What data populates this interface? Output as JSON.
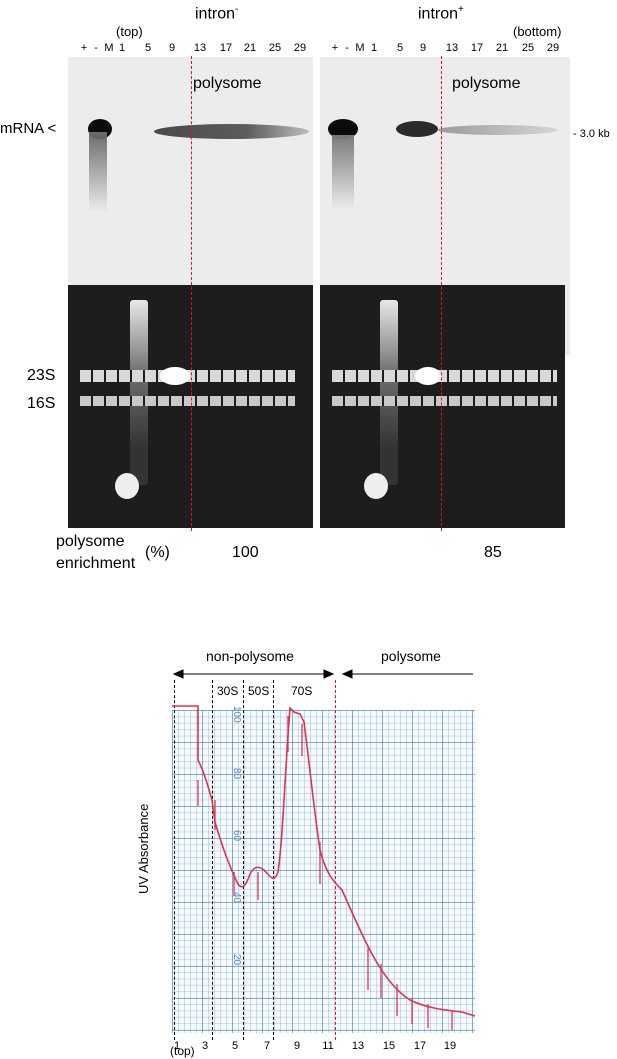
{
  "gel_figure": {
    "left_header": {
      "top_label": "(top)",
      "title": "intron",
      "superscript": "-"
    },
    "right_header": {
      "title": "intron",
      "superscript": "+",
      "bottom_label": "(bottom)"
    },
    "lanes": [
      "+",
      "-",
      "M",
      "1",
      "5",
      "9",
      "13",
      "17",
      "21",
      "25",
      "29"
    ],
    "polysome_label": "polysome",
    "mrna_label": "mRNA",
    "size_marker": "3.0 kb",
    "rrna_labels": [
      "23S",
      "16S"
    ],
    "enrichment_label_line1": "polysome",
    "enrichment_label_line2": "enrichment",
    "enrichment_unit": "(%)",
    "enrichment_values": [
      "100",
      "85"
    ]
  },
  "profile_figure": {
    "non_polysome_label": "non-polysome",
    "polysome_label": "polysome",
    "peak_labels": [
      "30S",
      "50S",
      "70S"
    ],
    "y_axis_label": "UV Absorbance",
    "scale_labels": [
      "100",
      "80",
      "60",
      "40",
      "20"
    ],
    "x_ticks": [
      "1",
      "3",
      "5",
      "7",
      "9",
      "11",
      "13",
      "15",
      "17",
      "19"
    ],
    "x_bottom_label": "(top)",
    "trace_color": "#e0344c",
    "dashed_line_color": "#e0141e"
  }
}
